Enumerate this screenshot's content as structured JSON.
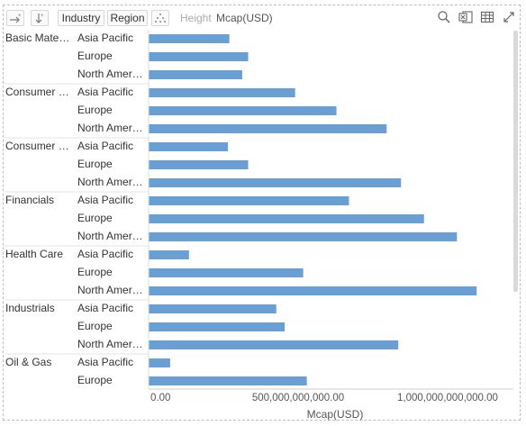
{
  "toolbar": {
    "buttons": [
      "Industry",
      "Region"
    ],
    "size_label": "Height",
    "size_value": "Mcap(USD)",
    "icons": [
      "sort-axis-icon",
      "sort-order-icon",
      "scatter-icon",
      "search-icon",
      "excel-export-icon",
      "table-view-icon",
      "expand-icon"
    ]
  },
  "chart_data": {
    "type": "bar",
    "orientation": "horizontal",
    "xlabel": "Mcap(USD)",
    "xlim": [
      0,
      1200000000000
    ],
    "xticks": [
      {
        "value": 0,
        "label": "0.00"
      },
      {
        "value": 500000000000,
        "label": "500,000,000,000.00"
      },
      {
        "value": 1000000000000,
        "label": "1,000,000,000,000.00"
      }
    ],
    "bar_color": "#6a9fd4",
    "groups": [
      {
        "industry": "Basic Mate…",
        "rows": [
          {
            "region": "Asia Pacific",
            "value": 270000000000
          },
          {
            "region": "Europe",
            "value": 333000000000
          },
          {
            "region": "North Amer…",
            "value": 313000000000
          }
        ]
      },
      {
        "industry": "Consumer …",
        "rows": [
          {
            "region": "Asia Pacific",
            "value": 490000000000
          },
          {
            "region": "Europe",
            "value": 628000000000
          },
          {
            "region": "North Amer…",
            "value": 796000000000
          }
        ]
      },
      {
        "industry": "Consumer …",
        "rows": [
          {
            "region": "Asia Pacific",
            "value": 265000000000
          },
          {
            "region": "Europe",
            "value": 333000000000
          },
          {
            "region": "North Amer…",
            "value": 844000000000
          }
        ]
      },
      {
        "industry": "Financials",
        "rows": [
          {
            "region": "Asia Pacific",
            "value": 670000000000
          },
          {
            "region": "Europe",
            "value": 921000000000
          },
          {
            "region": "North Amer…",
            "value": 1031000000000
          }
        ]
      },
      {
        "industry": "Health Care",
        "rows": [
          {
            "region": "Asia Pacific",
            "value": 135000000000
          },
          {
            "region": "Europe",
            "value": 517000000000
          },
          {
            "region": "North Amer…",
            "value": 1097000000000
          }
        ]
      },
      {
        "industry": "Industrials",
        "rows": [
          {
            "region": "Asia Pacific",
            "value": 427000000000
          },
          {
            "region": "Europe",
            "value": 455000000000
          },
          {
            "region": "North Amer…",
            "value": 835000000000
          }
        ]
      },
      {
        "industry": "Oil & Gas",
        "rows": [
          {
            "region": "Asia Pacific",
            "value": 72000000000
          },
          {
            "region": "Europe",
            "value": 529000000000
          }
        ]
      }
    ]
  }
}
